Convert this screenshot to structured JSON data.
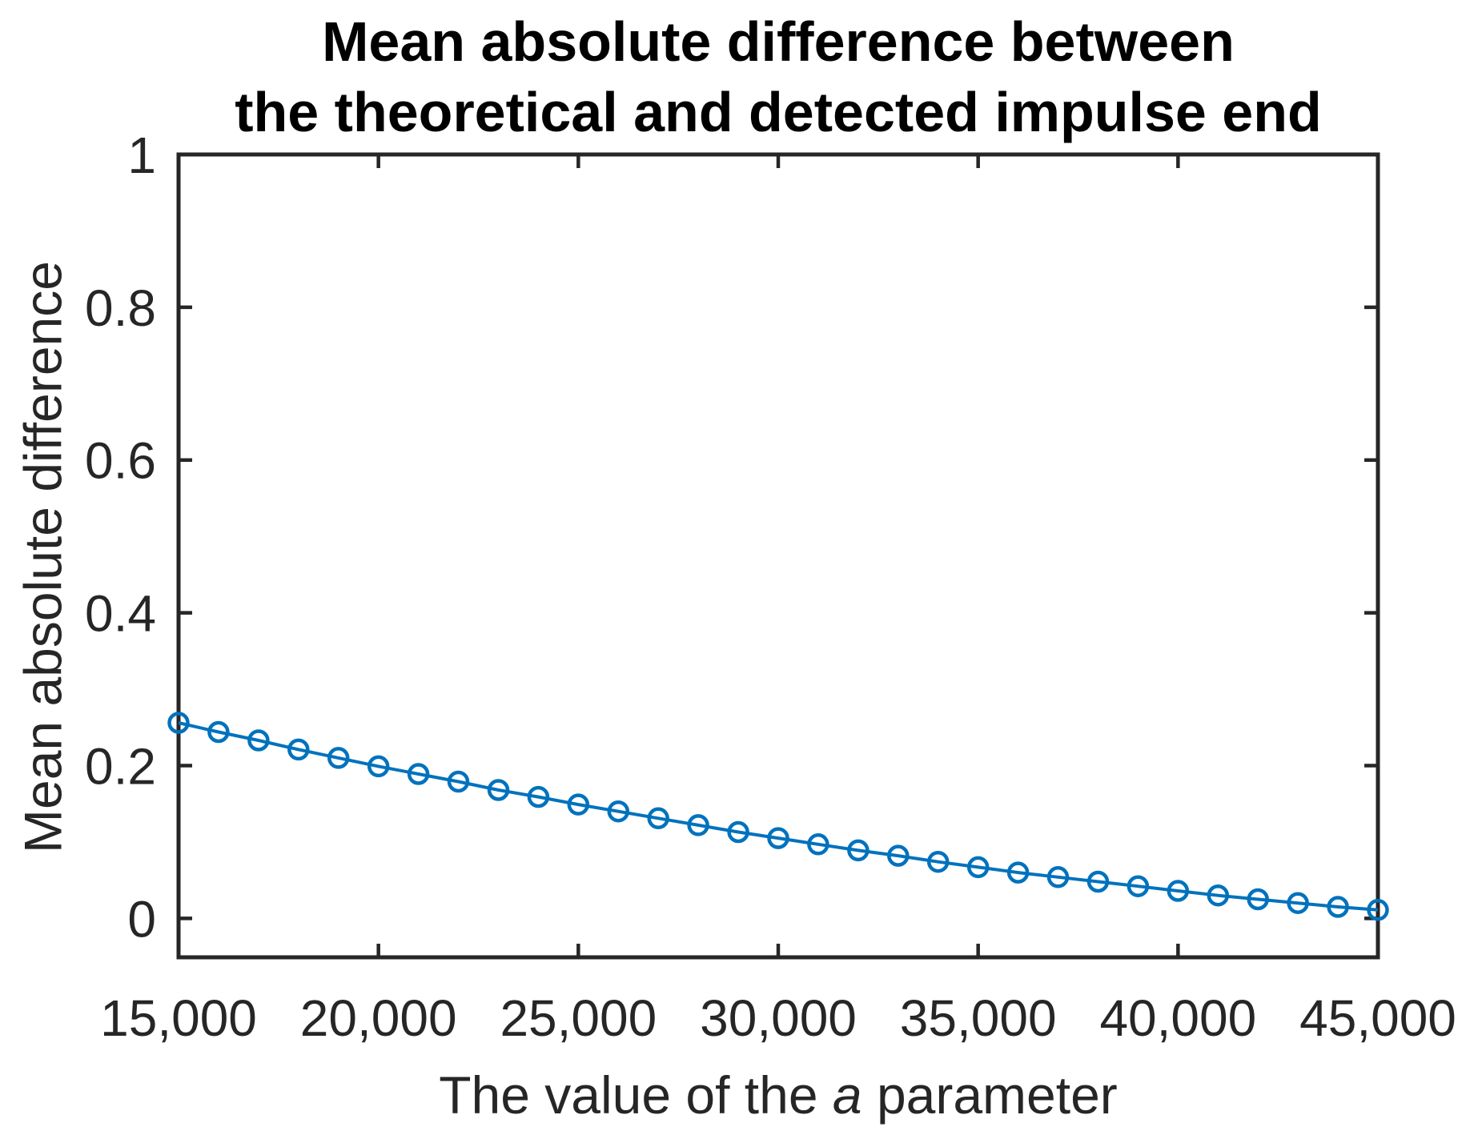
{
  "title": {
    "lines": [
      "Mean absolute difference between",
      "the theoretical and detected impulse end"
    ]
  },
  "ylabel": "Mean absolute difference",
  "xlabel": {
    "prefix": "The value of the ",
    "italic": "a",
    "suffix": " parameter"
  },
  "colors": {
    "line": "#0072BD",
    "axis": "#262626",
    "tick_text": "#262626",
    "title_text": "#000000",
    "background": "#ffffff"
  },
  "chart_data": {
    "type": "line",
    "title": "Mean absolute difference between the theoretical and detected impulse end",
    "xlabel": "The value of the a parameter",
    "ylabel": "Mean absolute difference",
    "marker": "open-circle",
    "grid": false,
    "legend": null,
    "xlim": [
      15000,
      45000
    ],
    "ylim": [
      -0.051,
      1
    ],
    "x_tick_values": [
      15000,
      20000,
      25000,
      30000,
      35000,
      40000,
      45000
    ],
    "x_tick_labels": [
      "15,000",
      "20,000",
      "25,000",
      "30,000",
      "35,000",
      "40,000",
      "45,000"
    ],
    "y_tick_values": [
      0,
      0.2,
      0.4,
      0.6,
      0.8,
      1
    ],
    "y_tick_labels": [
      "0",
      "0.2",
      "0.4",
      "0.6",
      "0.8",
      "1"
    ],
    "x": [
      15000,
      16000,
      17000,
      18000,
      19000,
      20000,
      21000,
      22000,
      23000,
      24000,
      25000,
      26000,
      27000,
      28000,
      29000,
      30000,
      31000,
      32000,
      33000,
      34000,
      35000,
      36000,
      37000,
      38000,
      39000,
      40000,
      41000,
      42000,
      43000,
      44000,
      45000
    ],
    "y": [
      0.256,
      0.244,
      0.233,
      0.221,
      0.21,
      0.199,
      0.189,
      0.179,
      0.168,
      0.159,
      0.149,
      0.14,
      0.131,
      0.122,
      0.113,
      0.105,
      0.097,
      0.089,
      0.082,
      0.074,
      0.067,
      0.06,
      0.054,
      0.048,
      0.042,
      0.036,
      0.03,
      0.025,
      0.02,
      0.015,
      0.011
    ]
  }
}
